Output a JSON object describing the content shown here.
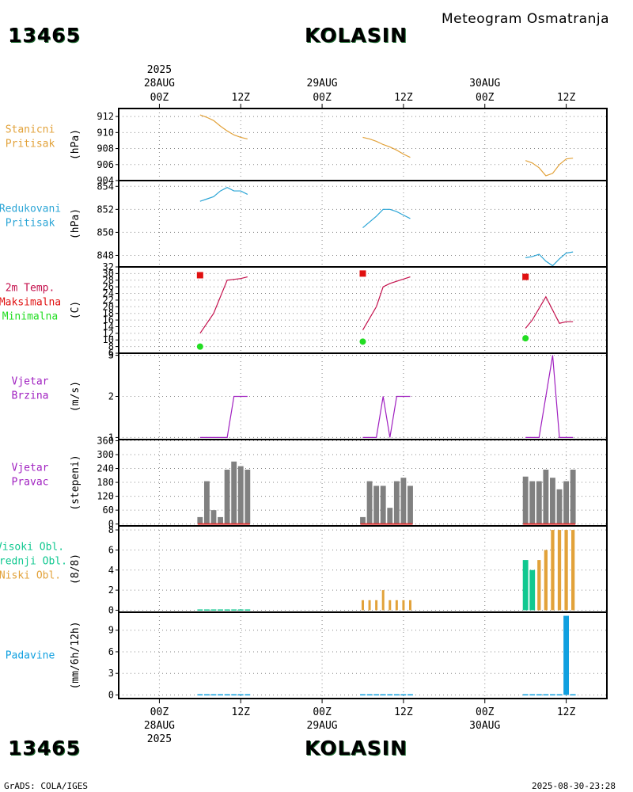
{
  "header": {
    "station_id": "13465",
    "station_name": "KOLASIN",
    "title": "Meteogram Osmatranja"
  },
  "footer": {
    "station_id": "13465",
    "station_name": "KOLASIN",
    "credit": "GrADS: COLA/IGES",
    "timestamp": "2025-08-30-23:28"
  },
  "colors": {
    "pressure": "#e2a23a",
    "reduced": "#2ba5d6",
    "temp": "#c4104c",
    "tmax": "#e01010",
    "tmin": "#22dd22",
    "wind": "#a020c0",
    "dir_bar": "#808080",
    "dir_base": "#dd3030",
    "cloud_high": "#10c890",
    "cloud_mid": "#10c890",
    "cloud_low": "#e2a23a",
    "precip": "#10a0e0",
    "grid": "#888888"
  },
  "chart_data": {
    "type": "meteogram",
    "x_axis": {
      "unit": "hours since 2025-08-28 00Z",
      "range": [
        -6,
        66
      ],
      "ticks": [
        {
          "hour": 0,
          "label": "00Z",
          "date": "28AUG",
          "year": "2025"
        },
        {
          "hour": 12,
          "label": "12Z",
          "date": "",
          "year": ""
        },
        {
          "hour": 24,
          "label": "00Z",
          "date": "29AUG",
          "year": ""
        },
        {
          "hour": 36,
          "label": "12Z",
          "date": "",
          "year": ""
        },
        {
          "hour": 48,
          "label": "00Z",
          "date": "30AUG",
          "year": ""
        },
        {
          "hour": 60,
          "label": "12Z",
          "date": "",
          "year": ""
        }
      ]
    },
    "panels": [
      {
        "id": "pressure",
        "labels": [
          "Stanicni",
          "Pritisak"
        ],
        "label_colors": [
          "pressure",
          "pressure"
        ],
        "unit": "(hPa)",
        "ylim": [
          904,
          913
        ],
        "yticks": [
          904,
          906,
          908,
          910,
          912
        ],
        "series": [
          {
            "name": "Stanicni Pritisak",
            "color": "pressure",
            "type": "line",
            "x": [
              6,
              7,
              8,
              9,
              10,
              11,
              12,
              13
            ],
            "y": [
              912.2,
              911.9,
              911.5,
              910.8,
              910.2,
              909.7,
              909.4,
              909.2
            ]
          },
          {
            "name": "Stanicni Pritisak",
            "color": "pressure",
            "type": "line",
            "x": [
              30,
              31,
              32,
              33,
              34,
              35,
              36,
              37
            ],
            "y": [
              909.4,
              909.2,
              908.9,
              908.5,
              908.2,
              907.8,
              907.3,
              906.9
            ]
          },
          {
            "name": "Stanicni Pritisak",
            "color": "pressure",
            "type": "line",
            "x": [
              54,
              55,
              56,
              57,
              58,
              59,
              60,
              61
            ],
            "y": [
              906.5,
              906.2,
              905.6,
              904.6,
              904.9,
              906.0,
              906.7,
              906.8
            ]
          }
        ]
      },
      {
        "id": "reduced",
        "labels": [
          "Redukovani",
          "Pritisak"
        ],
        "label_colors": [
          "reduced",
          "reduced"
        ],
        "unit": "(hPa)",
        "ylim": [
          847,
          854.5
        ],
        "yticks": [
          848,
          850,
          852,
          854
        ],
        "series": [
          {
            "name": "Redukovani Pritisak",
            "color": "reduced",
            "type": "line",
            "x": [
              6,
              7,
              8,
              9,
              10,
              11,
              12,
              13
            ],
            "y": [
              852.7,
              852.9,
              853.1,
              853.6,
              853.9,
              853.6,
              853.6,
              853.3
            ]
          },
          {
            "name": "Redukovani Pritisak",
            "color": "reduced",
            "type": "line",
            "x": [
              30,
              31,
              32,
              33,
              34,
              35,
              36,
              37
            ],
            "y": [
              850.4,
              850.9,
              851.4,
              852.0,
              852.0,
              851.8,
              851.5,
              851.2
            ]
          },
          {
            "name": "Redukovani Pritisak",
            "color": "reduced",
            "type": "line",
            "x": [
              54,
              55,
              56,
              57,
              58,
              59,
              60,
              61
            ],
            "y": [
              847.8,
              847.9,
              848.1,
              847.5,
              847.1,
              847.7,
              848.2,
              848.3
            ]
          }
        ]
      },
      {
        "id": "temp",
        "labels": [
          "2m Temp.",
          "Maksimalna",
          "Minimalna"
        ],
        "label_colors": [
          "temp",
          "tmax",
          "tmin"
        ],
        "unit": "(C)",
        "ylim": [
          6,
          32
        ],
        "yticks": [
          6,
          8,
          10,
          12,
          14,
          16,
          18,
          20,
          22,
          24,
          26,
          28,
          30,
          32
        ],
        "series": [
          {
            "name": "2m Temp.",
            "color": "temp",
            "type": "line",
            "x": [
              6,
              8,
              10,
              12,
              13
            ],
            "y": [
              12,
              18,
              28,
              28.5,
              29
            ]
          },
          {
            "name": "2m Temp.",
            "color": "temp",
            "type": "line",
            "x": [
              30,
              32,
              33,
              34,
              37
            ],
            "y": [
              13,
              20,
              26,
              27,
              29
            ]
          },
          {
            "name": "2m Temp.",
            "color": "temp",
            "type": "line",
            "x": [
              54,
              55,
              57,
              59,
              60,
              61
            ],
            "y": [
              13.5,
              16,
              23,
              15,
              15.5,
              15.5
            ]
          },
          {
            "name": "Maksimalna",
            "color": "tmax",
            "type": "square",
            "x": [
              6,
              30,
              54
            ],
            "y": [
              29.5,
              30,
              29
            ]
          },
          {
            "name": "Minimalna",
            "color": "tmin",
            "type": "dot",
            "x": [
              6,
              30,
              54
            ],
            "y": [
              8,
              9.5,
              10.5
            ]
          }
        ]
      },
      {
        "id": "wind",
        "labels": [
          "Vjetar",
          "Brzina"
        ],
        "label_colors": [
          "wind",
          "wind"
        ],
        "unit": "(m/s)",
        "ylim": [
          0.95,
          3.05
        ],
        "yticks": [
          1,
          2,
          3
        ],
        "series": [
          {
            "name": "Vjetar Brzina",
            "color": "wind",
            "type": "line",
            "x": [
              6,
              10,
              11,
              13
            ],
            "y": [
              1,
              1,
              2,
              2
            ]
          },
          {
            "name": "Vjetar Brzina",
            "color": "wind",
            "type": "line",
            "x": [
              30,
              32,
              33,
              34,
              35,
              37
            ],
            "y": [
              1,
              1,
              2,
              1,
              2,
              2
            ]
          },
          {
            "name": "Vjetar Brzina",
            "color": "wind",
            "type": "line",
            "x": [
              54,
              56,
              57,
              58,
              59,
              61
            ],
            "y": [
              1,
              1,
              2,
              3,
              1,
              1
            ]
          }
        ]
      },
      {
        "id": "winddir",
        "labels": [
          "Vjetar",
          "Pravac"
        ],
        "label_colors": [
          "wind",
          "wind"
        ],
        "unit": "(stepeni)",
        "ylim": [
          -8,
          365
        ],
        "yticks": [
          0,
          60,
          120,
          180,
          240,
          300,
          360
        ],
        "series": [
          {
            "name": "Vjetar Pravac",
            "color": "dir_bar",
            "type": "bar",
            "width": 0.8,
            "x": [
              6,
              7,
              8,
              9,
              10,
              11,
              12,
              13,
              30,
              31,
              32,
              33,
              34,
              35,
              36,
              37,
              54,
              55,
              56,
              57,
              58,
              59,
              60,
              61
            ],
            "y": [
              30,
              185,
              60,
              30,
              235,
              270,
              250,
              235,
              30,
              185,
              165,
              165,
              70,
              185,
              200,
              165,
              205,
              185,
              185,
              235,
              200,
              150,
              185,
              235
            ]
          }
        ]
      },
      {
        "id": "clouds",
        "labels": [
          "Visoki Obl.",
          "Srednji Obl.",
          "Niski Obl."
        ],
        "label_colors": [
          "cloud_high",
          "cloud_mid",
          "cloud_low"
        ],
        "unit": "(8/8)",
        "ylim": [
          -0.2,
          8.4
        ],
        "yticks": [
          0,
          2,
          4,
          6,
          8
        ],
        "series": [
          {
            "name": "Srednji Obl.",
            "color": "cloud_mid",
            "type": "bar",
            "width": 0.8,
            "x": [
              6,
              7,
              8,
              9,
              10,
              11,
              12,
              13
            ],
            "y": [
              0.08,
              0.08,
              0.08,
              0.08,
              0.08,
              0.08,
              0.08,
              0.08
            ]
          },
          {
            "name": "Niski Obl.",
            "color": "cloud_low",
            "type": "bar",
            "width": 0.35,
            "x": [
              30,
              31,
              32,
              33,
              34,
              35,
              36,
              37
            ],
            "y": [
              1,
              1,
              1,
              2,
              1,
              1,
              1,
              1
            ]
          },
          {
            "name": "Visoki Obl.",
            "color": "cloud_high",
            "type": "bar",
            "width": 0.8,
            "x": [
              54,
              55
            ],
            "y": [
              5,
              4
            ]
          },
          {
            "name": "Niski Obl.",
            "color": "cloud_low",
            "type": "bar",
            "width": 0.5,
            "x": [
              56,
              57,
              58,
              59,
              60,
              61
            ],
            "y": [
              5,
              6,
              8,
              8,
              8,
              8
            ]
          }
        ]
      },
      {
        "id": "precip",
        "labels": [
          "Padavine"
        ],
        "label_colors": [
          "precip"
        ],
        "unit": "(mm/6h/12h)",
        "ylim": [
          -0.5,
          11.5
        ],
        "yticks": [
          0,
          3,
          6,
          9
        ],
        "series": [
          {
            "name": "Padavine",
            "color": "precip",
            "type": "bar",
            "width": 0.8,
            "x": [
              6,
              7,
              8,
              9,
              10,
              11,
              12,
              13,
              30,
              31,
              32,
              33,
              34,
              35,
              36,
              37,
              54,
              55,
              56,
              57,
              58,
              59,
              60,
              61
            ],
            "y": [
              0.1,
              0.1,
              0.1,
              0.1,
              0.1,
              0.1,
              0.1,
              0.1,
              0.1,
              0.1,
              0.1,
              0.1,
              0.1,
              0.1,
              0.1,
              0.1,
              0.1,
              0.1,
              0.1,
              0.1,
              0.1,
              0.1,
              11,
              0.1
            ]
          }
        ]
      }
    ]
  }
}
